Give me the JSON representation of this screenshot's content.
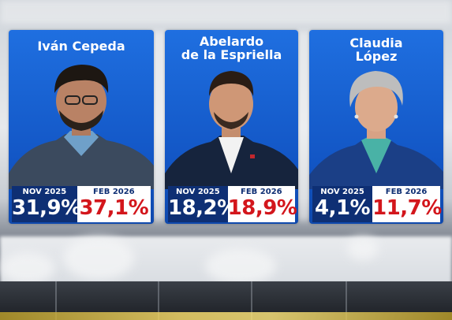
{
  "candidates": [
    {
      "name": "Iván Cepeda",
      "date_old": "NOV 2025",
      "value_old": "31,9%",
      "date_new": "FEB 2026",
      "value_new": "37,1%"
    },
    {
      "name": "Abelardo\nde la Espriella",
      "date_old": "NOV 2025",
      "value_old": "18,2%",
      "date_new": "FEB 2026",
      "value_new": "18,9%"
    },
    {
      "name": "Claudia\nLópez",
      "date_old": "NOV 2025",
      "value_old": "4,1%",
      "date_new": "FEB 2026",
      "value_new": "11,7%"
    }
  ],
  "colors": {
    "card_blue": "#1a62d6",
    "old_panel": "#0e2f74",
    "new_value_red": "#d3161c",
    "new_panel": "#ffffff"
  }
}
